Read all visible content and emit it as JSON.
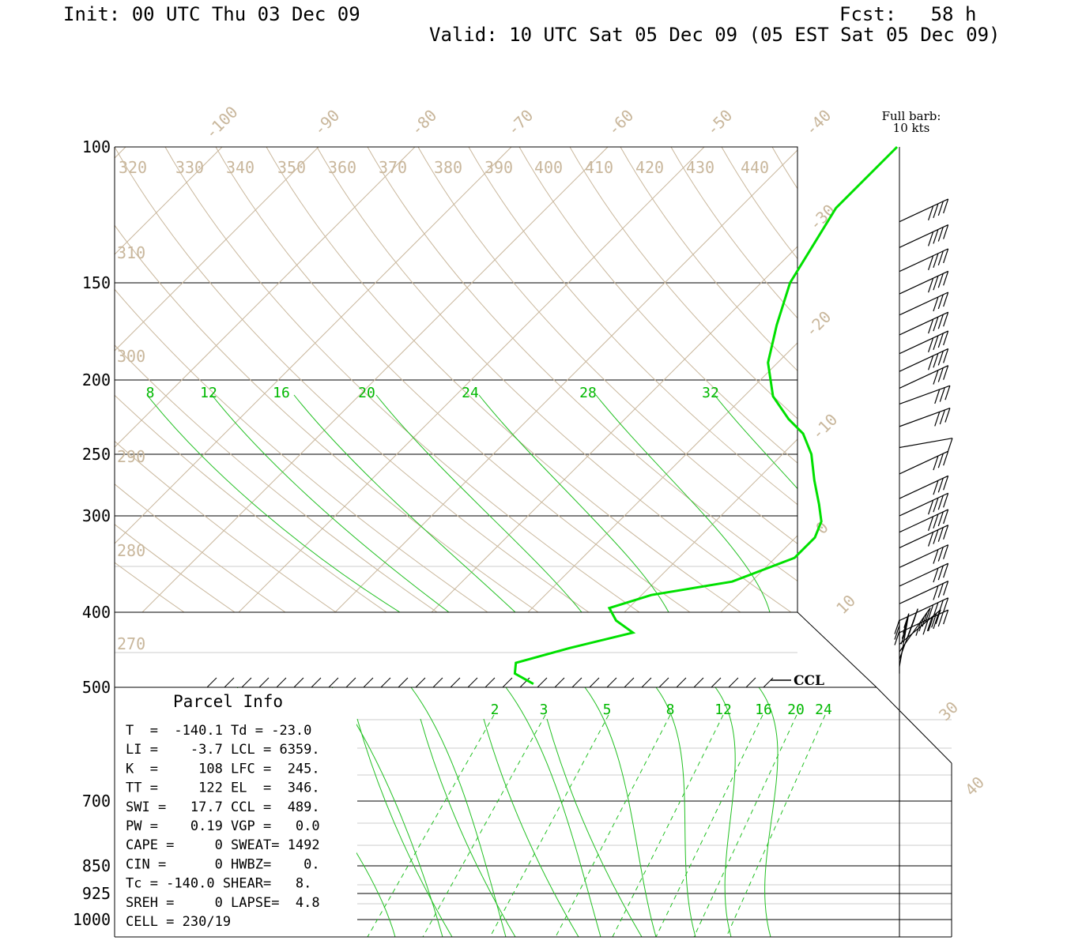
{
  "header": {
    "init": "Init: 00 UTC Thu 03 Dec 09",
    "fcst": "Fcst:   58 h",
    "valid": "Valid: 10 UTC Sat 05 Dec 09 (05 EST Sat 05 Dec 09)"
  },
  "barb_note": [
    "Full barb:",
    "10 kts"
  ],
  "ccl_label": "CCL",
  "parcel_info": {
    "title": "Parcel Info",
    "rows": [
      "T  =  -140.1 Td = -23.0",
      "LI =    -3.7 LCL = 6359.",
      "K  =     108 LFC =  245.",
      "TT =     122 EL  =  346.",
      "SWI =   17.7 CCL =  489.",
      "PW =    0.19 VGP =   0.0",
      "CAPE =     0 SWEAT= 1492",
      "CIN =      0 HWBZ=    0.",
      "Tc = -140.0 SHEAR=   8.",
      "SREH =     0 LAPSE=  4.8",
      "CELL = 230/19"
    ]
  },
  "chart_data": {
    "type": "line",
    "title": "",
    "xlabel": "",
    "ylabel": "",
    "colors": {
      "temperature": "#00e000",
      "isotherm": "#c9b79c",
      "mixing_ratio": "#00b800",
      "isobar": "#000000"
    },
    "pressure_levels": [
      {
        "p": 100,
        "label": "100"
      },
      {
        "p": 150,
        "label": "150"
      },
      {
        "p": 200,
        "label": "200"
      },
      {
        "p": 250,
        "label": "250"
      },
      {
        "p": 300,
        "label": "300"
      },
      {
        "p": 400,
        "label": "400"
      },
      {
        "p": 500,
        "label": "500"
      },
      {
        "p": 700,
        "label": "700"
      },
      {
        "p": 850,
        "label": "850"
      },
      {
        "p": 925,
        "label": "925"
      },
      {
        "p": 1000,
        "label": "1000"
      }
    ],
    "isotherm_labels": [
      {
        "t": -100,
        "label": "-100"
      },
      {
        "t": -90,
        "label": "-90"
      },
      {
        "t": -80,
        "label": "-80"
      },
      {
        "t": -70,
        "label": "-70"
      },
      {
        "t": -60,
        "label": "-60"
      },
      {
        "t": -50,
        "label": "-50"
      },
      {
        "t": -40,
        "label": "-40"
      },
      {
        "t": -30,
        "label": "-30"
      },
      {
        "t": -20,
        "label": "-20"
      },
      {
        "t": -10,
        "label": "-10"
      },
      {
        "t": 0,
        "label": "0"
      },
      {
        "t": 10,
        "label": "10"
      },
      {
        "t": 30,
        "label": "30"
      },
      {
        "t": 40,
        "label": "40"
      }
    ],
    "theta_labels_top": [
      "320",
      "330",
      "340",
      "350",
      "360",
      "370",
      "380",
      "390",
      "400",
      "410",
      "420",
      "430",
      "440"
    ],
    "theta_labels_left": [
      {
        "p": 125,
        "label": "310"
      },
      {
        "p": 175,
        "label": "300"
      },
      {
        "p": 250,
        "label": "290"
      },
      {
        "p": 330,
        "label": "280"
      },
      {
        "p": 430,
        "label": "270"
      }
    ],
    "mixing_ratio_labels_upper": [
      "8",
      "12",
      "16",
      "20",
      "24",
      "28",
      "32"
    ],
    "mixing_ratio_labels_lower": [
      "2",
      "3",
      "5",
      "8",
      "12",
      "16",
      "20",
      "24"
    ],
    "temperature_profile": [
      {
        "p": 100,
        "t": -30
      },
      {
        "p": 120,
        "t": -30
      },
      {
        "p": 150,
        "t": -27
      },
      {
        "p": 170,
        "t": -24
      },
      {
        "p": 190,
        "t": -21
      },
      {
        "p": 210,
        "t": -17
      },
      {
        "p": 225,
        "t": -13
      },
      {
        "p": 235,
        "t": -10
      },
      {
        "p": 250,
        "t": -7
      },
      {
        "p": 270,
        "t": -4
      },
      {
        "p": 290,
        "t": -1
      },
      {
        "p": 305,
        "t": 1
      },
      {
        "p": 320,
        "t": 2
      },
      {
        "p": 340,
        "t": 2
      },
      {
        "p": 365,
        "t": -2
      },
      {
        "p": 380,
        "t": -9
      },
      {
        "p": 395,
        "t": -12
      },
      {
        "p": 410,
        "t": -10
      },
      {
        "p": 425,
        "t": -7
      },
      {
        "p": 445,
        "t": -12
      },
      {
        "p": 465,
        "t": -16
      },
      {
        "p": 480,
        "t": -15
      },
      {
        "p": 495,
        "t": -12
      }
    ],
    "wind_barbs": [
      {
        "p": 125,
        "dir": 245,
        "spd": 40
      },
      {
        "p": 135,
        "dir": 245,
        "spd": 40
      },
      {
        "p": 145,
        "dir": 245,
        "spd": 40
      },
      {
        "p": 155,
        "dir": 245,
        "spd": 40
      },
      {
        "p": 165,
        "dir": 245,
        "spd": 30
      },
      {
        "p": 175,
        "dir": 245,
        "spd": 40
      },
      {
        "p": 185,
        "dir": 245,
        "spd": 40
      },
      {
        "p": 195,
        "dir": 245,
        "spd": 40
      },
      {
        "p": 205,
        "dir": 245,
        "spd": 30
      },
      {
        "p": 215,
        "dir": 250,
        "spd": 30
      },
      {
        "p": 230,
        "dir": 250,
        "spd": 30
      },
      {
        "p": 245,
        "dir": 260,
        "spd": 10
      },
      {
        "p": 265,
        "dir": 245,
        "spd": 30
      },
      {
        "p": 285,
        "dir": 245,
        "spd": 30
      },
      {
        "p": 300,
        "dir": 245,
        "spd": 40
      },
      {
        "p": 315,
        "dir": 245,
        "spd": 40
      },
      {
        "p": 330,
        "dir": 245,
        "spd": 40
      },
      {
        "p": 350,
        "dir": 245,
        "spd": 30
      },
      {
        "p": 370,
        "dir": 245,
        "spd": 30
      },
      {
        "p": 390,
        "dir": 245,
        "spd": 30
      },
      {
        "p": 410,
        "dir": 245,
        "spd": 40
      },
      {
        "p": 425,
        "dir": 245,
        "spd": 40
      },
      {
        "p": 440,
        "dir": 230,
        "spd": 40
      },
      {
        "p": 450,
        "dir": 215,
        "spd": 40
      },
      {
        "p": 460,
        "dir": 200,
        "spd": 40
      },
      {
        "p": 470,
        "dir": 190,
        "spd": 40
      },
      {
        "p": 480,
        "dir": 180,
        "spd": 30
      }
    ]
  }
}
